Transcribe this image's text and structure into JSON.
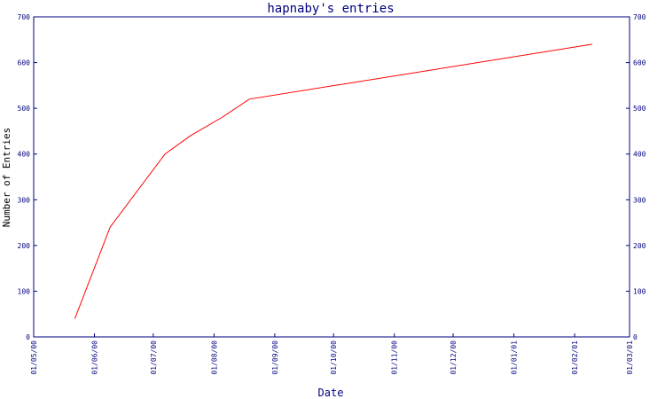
{
  "chart_data": {
    "type": "line",
    "title": "hapnaby's entries",
    "xlabel": "Date",
    "ylabel": "Number of Entries",
    "ylim": [
      0,
      700
    ],
    "y_ticks": [
      0,
      100,
      200,
      300,
      400,
      500,
      600,
      700
    ],
    "x_ticks": [
      "01/05/00",
      "01/06/00",
      "01/07/00",
      "01/08/00",
      "01/09/00",
      "01/10/00",
      "01/11/00",
      "01/12/00",
      "01/01/01",
      "01/02/01",
      "01/03/01"
    ],
    "grid": false,
    "colors": {
      "axis": "#000080",
      "series": "#ff0000"
    },
    "series": [
      {
        "x": [
          "2000-05-22",
          "2000-06-09",
          "2000-07-07",
          "2000-07-20",
          "2000-08-05",
          "2000-08-19",
          "2001-02-10"
        ],
        "y": [
          40,
          240,
          400,
          440,
          480,
          520,
          640
        ]
      }
    ]
  }
}
